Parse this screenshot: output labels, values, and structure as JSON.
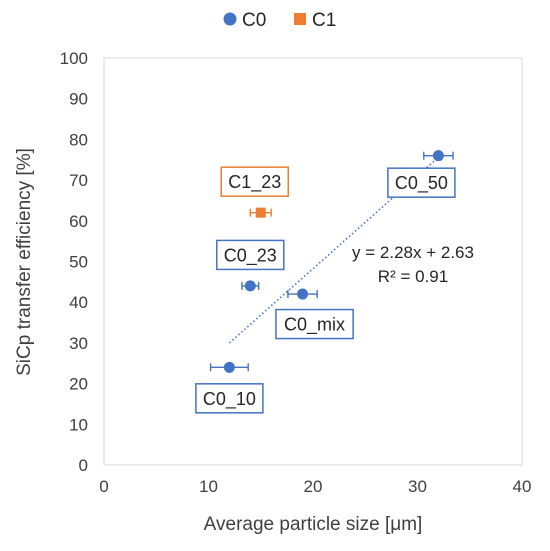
{
  "chart_data": {
    "type": "scatter",
    "xlabel": "Average particle size [μm]",
    "ylabel": "SiCp transfer efficiency [%]",
    "xlim": [
      0,
      40
    ],
    "ylim": [
      0,
      100
    ],
    "xticks": [
      0,
      10,
      20,
      30,
      40
    ],
    "yticks": [
      0,
      10,
      20,
      30,
      40,
      50,
      60,
      70,
      80,
      90,
      100
    ],
    "grid": false,
    "legend_position": "top",
    "series": [
      {
        "name": "C0",
        "color": "#4472C4",
        "marker": "circle",
        "points": [
          {
            "label": "C0_10",
            "x": 12,
            "y": 24,
            "x_err": 1.8
          },
          {
            "label": "C0_23",
            "x": 14,
            "y": 44,
            "x_err": 0.8
          },
          {
            "label": "C0_mix",
            "x": 19,
            "y": 42,
            "x_err": 1.4
          },
          {
            "label": "C0_50",
            "x": 32,
            "y": 76,
            "x_err": 1.4
          }
        ]
      },
      {
        "name": "C1",
        "color": "#ED7D31",
        "marker": "square",
        "points": [
          {
            "label": "C1_23",
            "x": 15,
            "y": 62,
            "x_err": 1.0
          }
        ]
      }
    ],
    "trendline": {
      "series": "C0",
      "slope": 2.28,
      "intercept": 2.63,
      "x_range": [
        12,
        32
      ],
      "equation_text": "y = 2.28x + 2.63",
      "r2_text": "R² = 0.91",
      "style": "dotted"
    }
  }
}
